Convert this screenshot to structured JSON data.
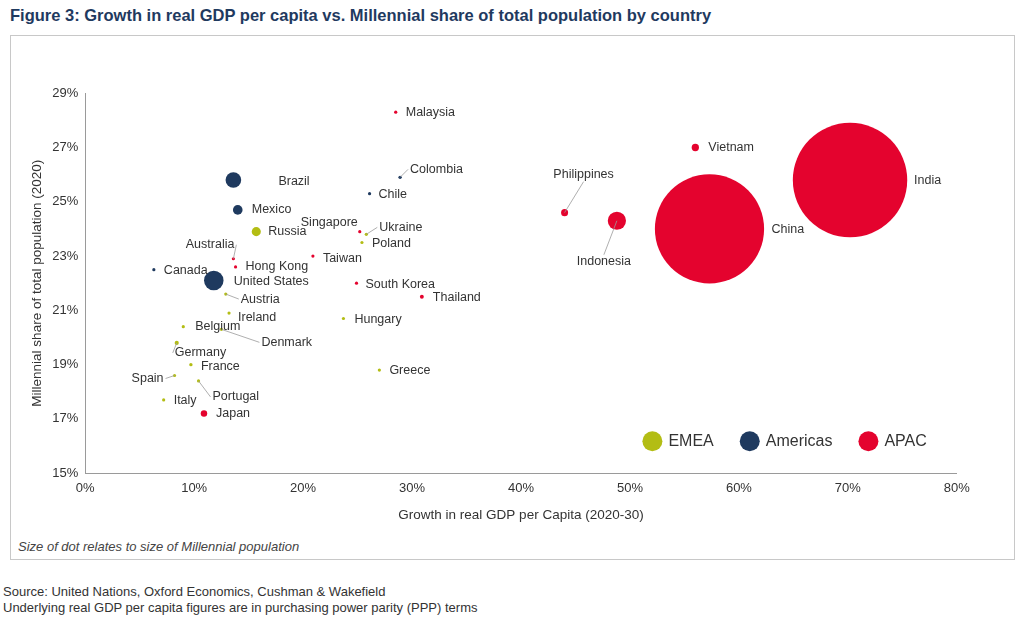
{
  "chart_data": {
    "type": "bubble",
    "title": "Figure 3: Growth in real GDP per capita vs. Millennial share of total population by country",
    "x_label": "Growth in real GDP per Capita (2020-30)",
    "y_label": "Millennial share of total population (2020)",
    "note": "Size of dot relates to size of Millennial population",
    "source": [
      "Source: United Nations, Oxford Economics, Cushman & Wakefield",
      "Underlying real GDP per capita figures are in purchasing power parity (PPP) terms"
    ],
    "xlim": [
      0,
      80
    ],
    "xticks": [
      {
        "value": 0,
        "label": "0%"
      },
      {
        "value": 10,
        "label": "10%"
      },
      {
        "value": 20,
        "label": "20%"
      },
      {
        "value": 30,
        "label": "30%"
      },
      {
        "value": 40,
        "label": "40%"
      },
      {
        "value": 50,
        "label": "50%"
      },
      {
        "value": 60,
        "label": "60%"
      },
      {
        "value": 70,
        "label": "70%"
      },
      {
        "value": 80,
        "label": "80%"
      }
    ],
    "ylim": [
      15,
      29
    ],
    "yticks": [
      {
        "value": 15,
        "label": "15%"
      },
      {
        "value": 17,
        "label": "17%"
      },
      {
        "value": 19,
        "label": "19%"
      },
      {
        "value": 21,
        "label": "21%"
      },
      {
        "value": 23,
        "label": "23%"
      },
      {
        "value": 25,
        "label": "25%"
      },
      {
        "value": 27,
        "label": "27%"
      },
      {
        "value": 29,
        "label": "29%"
      }
    ],
    "grid": false,
    "legend": "lower right",
    "series": [
      {
        "name": "EMEA",
        "color": "#b3bd14",
        "labels": [
          "Russia",
          "Ukraine",
          "Poland",
          "Austria",
          "Ireland",
          "Hungary",
          "Belgium",
          "Denmark",
          "Germany",
          "France",
          "Spain",
          "Greece",
          "Italy",
          "Portugal"
        ],
        "x": [
          15.7,
          25.8,
          25.4,
          12.9,
          13.2,
          23.7,
          9.0,
          12.5,
          8.4,
          9.7,
          8.2,
          27.0,
          7.2,
          10.4
        ],
        "y": [
          23.9,
          23.8,
          23.5,
          21.6,
          20.9,
          20.7,
          20.4,
          20.3,
          19.8,
          19.0,
          18.6,
          18.8,
          17.7,
          18.4
        ],
        "millennial_population": [
          35,
          10,
          9,
          2,
          1.1,
          2,
          2.5,
          1.2,
          16,
          13,
          9,
          2,
          11,
          2
        ]
      },
      {
        "name": "Americas",
        "color": "#1f3a5f",
        "labels": [
          "Brazil",
          "Mexico",
          "Colombia",
          "Chile",
          "Canada",
          "United States"
        ],
        "x": [
          13.6,
          14.0,
          28.9,
          26.1,
          6.3,
          11.8
        ],
        "y": [
          25.8,
          24.7,
          25.9,
          25.3,
          22.5,
          22.1
        ],
        "millennial_population": [
          60,
          37,
          13,
          5,
          9,
          75
        ]
      },
      {
        "name": "APAC",
        "color": "#e4032e",
        "labels": [
          "Malaysia",
          "Vietnam",
          "India",
          "China",
          "Philippines",
          "Indonesia",
          "Singapore",
          "Taiwan",
          "Australia",
          "Hong Kong",
          "South Korea",
          "Thailand",
          "Japan"
        ],
        "x": [
          28.5,
          56.0,
          70.2,
          57.3,
          44.0,
          48.8,
          25.2,
          20.9,
          13.6,
          13.8,
          24.9,
          30.9,
          10.9
        ],
        "y": [
          28.3,
          27.0,
          25.8,
          24.0,
          24.6,
          24.3,
          23.9,
          23.0,
          22.9,
          22.6,
          22.0,
          21.5,
          17.2
        ],
        "millennial_population": [
          9,
          28,
          440,
          420,
          27,
          70,
          1.3,
          5,
          6,
          1.6,
          12,
          15,
          25
        ]
      }
    ]
  }
}
